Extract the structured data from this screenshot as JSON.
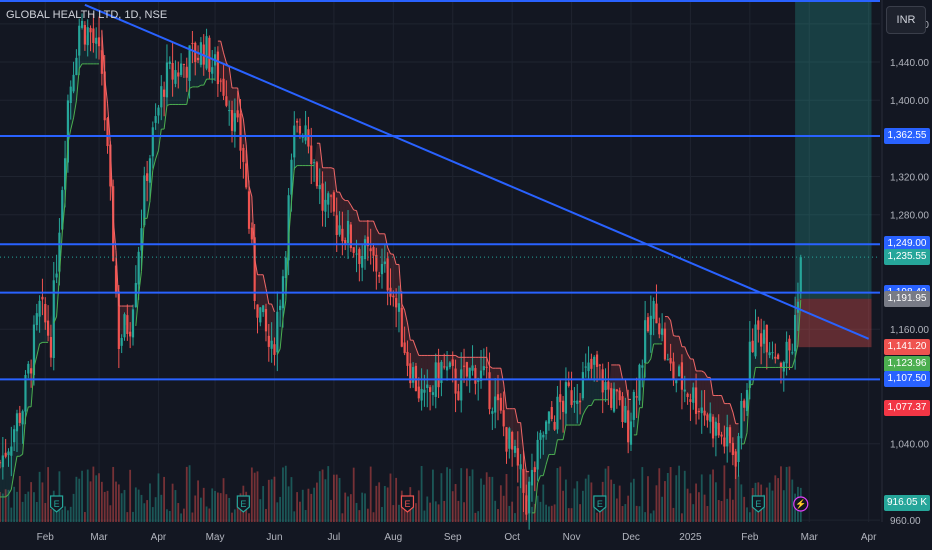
{
  "header": {
    "symbol_title": "GLOBAL HEALTH LTD, 1D, NSE",
    "currency": "INR"
  },
  "colors": {
    "background": "#131722",
    "up": "#26a69a",
    "down": "#ef5350",
    "level_line": "#2962ff",
    "grid": "#1f2430",
    "axis_text": "#b2b5be"
  },
  "price_tags": [
    {
      "label": "1,362.55",
      "value": 1362.55,
      "color": "#2962ff"
    },
    {
      "label": "1,249.00",
      "value": 1249.0,
      "color": "#2962ff"
    },
    {
      "label": "1,235.55",
      "value": 1235.55,
      "color": "#26a69a"
    },
    {
      "label": "1,198.40",
      "value": 1198.4,
      "color": "#2962ff"
    },
    {
      "label": "1,191.95",
      "value": 1191.95,
      "color": "#787b86"
    },
    {
      "label": "1,141.20",
      "value": 1141.2,
      "color": "#ef5350"
    },
    {
      "label": "1,123.96",
      "value": 1123.96,
      "color": "#4caf50"
    },
    {
      "label": "1,107.50",
      "value": 1107.5,
      "color": "#2962ff"
    },
    {
      "label": "1,077.37",
      "value": 1077.37,
      "color": "#f23645"
    },
    {
      "label": "916.05 K",
      "value": 978,
      "color": "#26a69a"
    }
  ],
  "chart_data": {
    "type": "candlestick",
    "title": "GLOBAL HEALTH LTD, 1D, NSE",
    "x_ticks": [
      "Feb",
      "Mar",
      "Apr",
      "May",
      "Jun",
      "Jul",
      "Aug",
      "Sep",
      "Oct",
      "Nov",
      "Dec",
      "2025",
      "Feb",
      "Mar",
      "Apr"
    ],
    "x_tick_index": [
      16,
      35,
      56,
      76,
      97,
      118,
      139,
      160,
      181,
      202,
      223,
      244,
      265,
      286,
      307
    ],
    "y_ticks": [
      960,
      1040,
      1160,
      1280,
      1320,
      1400,
      1440,
      1480
    ],
    "y_tick_labels": [
      "960.00",
      "1,040.00",
      "1,160.00",
      "1,280.00",
      "1,320.00",
      "1,400.00",
      "1,440.00",
      "1,480.00"
    ],
    "ylim": [
      958,
      1505
    ],
    "index_range": [
      0,
      311
    ],
    "horizontal_levels": [
      1504,
      1362.55,
      1249.0,
      1198.4,
      1107.5
    ],
    "trendline": {
      "from": [
        30,
        1500
      ],
      "to": [
        307,
        1150
      ]
    },
    "position_box": {
      "start_index": 281,
      "end_index": 308,
      "entry": 1191.95,
      "target": 1504,
      "stop": 1141.2
    },
    "events": [
      {
        "label": "E",
        "index": 20,
        "kind": "earnings"
      },
      {
        "label": "E",
        "index": 86,
        "kind": "earnings"
      },
      {
        "label": "E",
        "index": 144,
        "kind": "earnings"
      },
      {
        "label": "E",
        "index": 212,
        "kind": "earnings"
      },
      {
        "label": "E",
        "index": 268,
        "kind": "earnings"
      },
      {
        "label": "⚡",
        "index": 283,
        "kind": "split"
      }
    ],
    "anchors": [
      [
        0,
        1020
      ],
      [
        8,
        1080
      ],
      [
        14,
        1180
      ],
      [
        18,
        1150
      ],
      [
        24,
        1400
      ],
      [
        28,
        1480
      ],
      [
        32,
        1470
      ],
      [
        36,
        1430
      ],
      [
        42,
        1150
      ],
      [
        46,
        1170
      ],
      [
        52,
        1330
      ],
      [
        58,
        1420
      ],
      [
        66,
        1440
      ],
      [
        72,
        1455
      ],
      [
        80,
        1410
      ],
      [
        86,
        1340
      ],
      [
        90,
        1200
      ],
      [
        96,
        1130
      ],
      [
        100,
        1220
      ],
      [
        104,
        1360
      ],
      [
        108,
        1380
      ],
      [
        114,
        1290
      ],
      [
        120,
        1270
      ],
      [
        126,
        1245
      ],
      [
        132,
        1230
      ],
      [
        138,
        1210
      ],
      [
        144,
        1130
      ],
      [
        150,
        1080
      ],
      [
        156,
        1120
      ],
      [
        162,
        1100
      ],
      [
        168,
        1120
      ],
      [
        174,
        1090
      ],
      [
        180,
        1040
      ],
      [
        186,
        980
      ],
      [
        192,
        1050
      ],
      [
        198,
        1080
      ],
      [
        204,
        1100
      ],
      [
        210,
        1120
      ],
      [
        216,
        1090
      ],
      [
        222,
        1060
      ],
      [
        228,
        1150
      ],
      [
        232,
        1185
      ],
      [
        236,
        1120
      ],
      [
        242,
        1100
      ],
      [
        248,
        1080
      ],
      [
        254,
        1050
      ],
      [
        260,
        1030
      ],
      [
        266,
        1150
      ],
      [
        270,
        1160
      ],
      [
        276,
        1130
      ],
      [
        280,
        1140
      ],
      [
        283,
        1236
      ]
    ]
  }
}
